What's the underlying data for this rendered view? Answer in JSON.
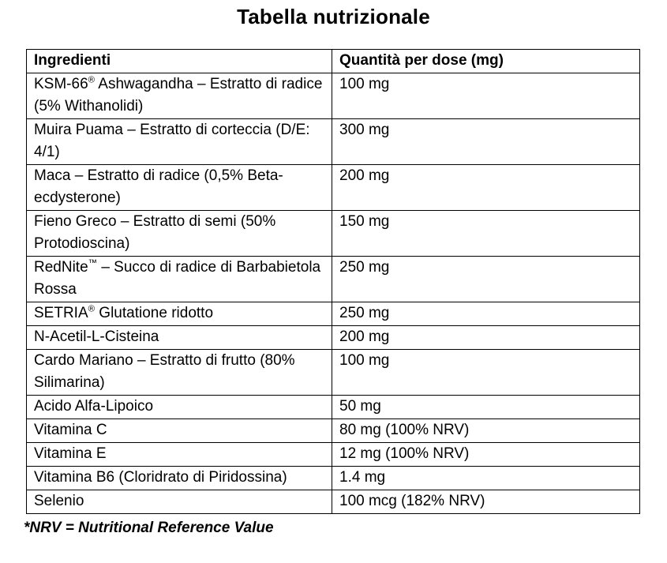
{
  "title": "Tabella nutrizionale",
  "table": {
    "headers": [
      "Ingredienti",
      "Quantità per dose (mg)"
    ],
    "rows": [
      {
        "ingredient": "KSM-66® Ashwagandha – Estratto di radice (5% Withanolidi)",
        "amount": "100 mg"
      },
      {
        "ingredient": "Muira Puama – Estratto di corteccia (D/E: 4/1)",
        "amount": "300 mg"
      },
      {
        "ingredient": "Maca – Estratto di radice (0,5% Beta-ecdysterone)",
        "amount": "200 mg"
      },
      {
        "ingredient": "Fieno Greco – Estratto di semi (50% Protodioscina)",
        "amount": "150 mg"
      },
      {
        "ingredient": "RedNite™ – Succo di radice di Barbabietola Rossa",
        "amount": "250 mg"
      },
      {
        "ingredient": "SETRIA® Glutatione ridotto",
        "amount": "250 mg"
      },
      {
        "ingredient": "N-Acetil-L-Cisteina",
        "amount": "200 mg"
      },
      {
        "ingredient": "Cardo Mariano – Estratto di frutto (80% Silimarina)",
        "amount": "100 mg"
      },
      {
        "ingredient": "Acido Alfa-Lipoico",
        "amount": "50 mg"
      },
      {
        "ingredient": "Vitamina C",
        "amount": "80 mg (100% NRV)"
      },
      {
        "ingredient": "Vitamina E",
        "amount": "12 mg (100% NRV)"
      },
      {
        "ingredient": "Vitamina B6 (Cloridrato di Piridossina)",
        "amount": "1.4 mg"
      },
      {
        "ingredient": "Selenio",
        "amount": "100 mcg (182% NRV)"
      }
    ]
  },
  "footnote": "*NRV = Nutritional Reference Value"
}
